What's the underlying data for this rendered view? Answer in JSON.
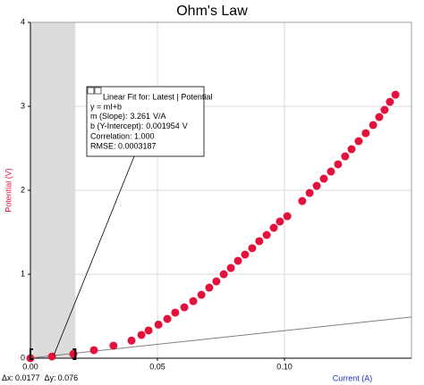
{
  "chart_data": {
    "type": "scatter",
    "title": "Ohm's Law",
    "x_label": "Current (A)",
    "y_label": "Potential (V)",
    "xlim": [
      0,
      0.15
    ],
    "ylim": [
      0,
      4
    ],
    "xticks": [
      {
        "value": 0,
        "label": "0.00"
      },
      {
        "value": 0.05,
        "label": "0.05"
      },
      {
        "value": 0.1,
        "label": "0.10"
      }
    ],
    "yticks": [
      0,
      1,
      2,
      3,
      4
    ],
    "grid": true,
    "series": [
      {
        "name": "Potential",
        "color": "#e3123d",
        "x": [
          0,
          0.0085,
          0.0169,
          0.025,
          0.0327,
          0.0398,
          0.0437,
          0.0465,
          0.0504,
          0.0539,
          0.057,
          0.0606,
          0.0641,
          0.0673,
          0.0704,
          0.0732,
          0.0761,
          0.0789,
          0.0817,
          0.0845,
          0.0873,
          0.0901,
          0.093,
          0.0958,
          0.0982,
          0.1011,
          0.107,
          0.1099,
          0.1127,
          0.1155,
          0.1183,
          0.1211,
          0.1239,
          0.1264,
          0.1292,
          0.132,
          0.1349,
          0.1373,
          0.1394,
          0.1415,
          0.1437
        ],
        "values": [
          0,
          0.02,
          0.05,
          0.096,
          0.149,
          0.21,
          0.277,
          0.33,
          0.4,
          0.468,
          0.543,
          0.606,
          0.68,
          0.755,
          0.84,
          0.915,
          1.0,
          1.074,
          1.16,
          1.234,
          1.31,
          1.394,
          1.468,
          1.553,
          1.628,
          1.691,
          1.872,
          1.968,
          2.053,
          2.138,
          2.223,
          2.309,
          2.404,
          2.489,
          2.585,
          2.68,
          2.777,
          2.872,
          2.957,
          3.053,
          3.138
        ]
      }
    ],
    "fit": {
      "heading": "Linear Fit for:  Latest | Potential",
      "equation": "y = mI+b",
      "slope": {
        "label": "m (Slope):",
        "value": 3.261,
        "unit": "V/A"
      },
      "intercept": {
        "label": "b (Y-Intercept):",
        "value": 0.001954,
        "unit": "V"
      },
      "correlation": "Correlation: 1.000",
      "rmse": "RMSE: 0.0003187",
      "color": "#808080"
    },
    "selection": {
      "dx_label": "Δx:",
      "dx": 0.0177,
      "dy_label": "Δy:",
      "dy": 0.076,
      "color": "#dcdcdc"
    }
  }
}
